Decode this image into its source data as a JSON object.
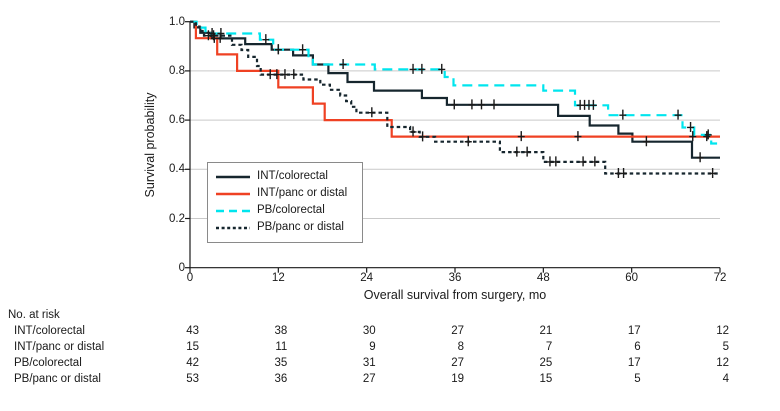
{
  "figure_title": "",
  "risk_table": {
    "header": "No. at risk",
    "columns": [
      0,
      12,
      24,
      36,
      48,
      60,
      72
    ],
    "rows": [
      {
        "label": "INT/colorectal",
        "values": [
          43,
          38,
          30,
          27,
          21,
          17,
          12
        ]
      },
      {
        "label": "INT/panc or distal",
        "values": [
          15,
          11,
          9,
          8,
          7,
          6,
          5
        ]
      },
      {
        "label": "PB/colorectal",
        "values": [
          42,
          35,
          31,
          27,
          25,
          17,
          12
        ]
      },
      {
        "label": "PB/panc or distal",
        "values": [
          53,
          36,
          27,
          19,
          15,
          5,
          4
        ]
      }
    ]
  },
  "colors": {
    "int_colorectal": "#16262e",
    "int_panc": "#ef4123",
    "pb_colorectal": "#00e5ee",
    "pb_panc": "#16262e",
    "axis": "#1a1a1a",
    "grid": "#c9c9c9",
    "censor": "#1a1a1a",
    "legend_border": "#8a8a8a"
  },
  "chart_data": {
    "type": "line",
    "subtype": "kaplan-meier-step",
    "title": "",
    "xlabel": "Overall survival from surgery, mo",
    "ylabel": "Survival probability",
    "xlim": [
      0,
      72
    ],
    "ylim": [
      0,
      1.0
    ],
    "grid": true,
    "legend_position": "inside-middle-left",
    "x_ticks": [
      {
        "label": "0",
        "value": 0
      },
      {
        "label": "12",
        "value": 12
      },
      {
        "label": "24",
        "value": 24
      },
      {
        "label": "36",
        "value": 36
      },
      {
        "label": "48",
        "value": 48
      },
      {
        "label": "60",
        "value": 60
      },
      {
        "label": "72",
        "value": 72
      }
    ],
    "y_ticks": [
      {
        "label": "1.0",
        "value": 1.0
      },
      {
        "label": "0.8",
        "value": 0.8
      },
      {
        "label": "0.6",
        "value": 0.6
      },
      {
        "label": "0.4",
        "value": 0.4
      },
      {
        "label": "0.2",
        "value": 0.2
      },
      {
        "label": "0",
        "value": 0
      }
    ],
    "series": [
      {
        "name": "INT/colorectal",
        "color": "#16262e",
        "style": "solid",
        "end": 72,
        "steps": [
          [
            0,
            1.0
          ],
          [
            0.6,
            0.977
          ],
          [
            1.4,
            0.955
          ],
          [
            2.9,
            0.932
          ],
          [
            7.5,
            0.909
          ],
          [
            11.1,
            0.886
          ],
          [
            14,
            0.863
          ],
          [
            16.7,
            0.826
          ],
          [
            18.8,
            0.791
          ],
          [
            21.4,
            0.755
          ],
          [
            25,
            0.72
          ],
          [
            31.5,
            0.69
          ],
          [
            34.9,
            0.662
          ],
          [
            50,
            0.617
          ],
          [
            54.3,
            0.578
          ],
          [
            58.2,
            0.545
          ],
          [
            60.1,
            0.512
          ],
          [
            68.2,
            0.447
          ]
        ],
        "censors": [
          [
            3.3,
            0.932
          ],
          [
            4.1,
            0.932
          ],
          [
            12,
            0.886
          ],
          [
            35.9,
            0.662
          ],
          [
            38.3,
            0.662
          ],
          [
            39.6,
            0.662
          ],
          [
            41.3,
            0.662
          ],
          [
            62,
            0.512
          ],
          [
            69.3,
            0.447
          ]
        ]
      },
      {
        "name": "INT/panc or distal",
        "color": "#ef4123",
        "style": "solid",
        "end": 72,
        "steps": [
          [
            0,
            1.0
          ],
          [
            0.8,
            0.933
          ],
          [
            3.7,
            0.867
          ],
          [
            6.4,
            0.8
          ],
          [
            12,
            0.733
          ],
          [
            16.7,
            0.667
          ],
          [
            18.3,
            0.6
          ],
          [
            27.4,
            0.533
          ]
        ],
        "censors": [
          [
            45,
            0.533
          ],
          [
            52.7,
            0.533
          ],
          [
            68.3,
            0.533
          ],
          [
            70.2,
            0.533
          ]
        ]
      },
      {
        "name": "PB/colorectal",
        "color": "#00e5ee",
        "style": "long-dash",
        "end": 71.6,
        "steps": [
          [
            0,
            1.0
          ],
          [
            0.9,
            0.976
          ],
          [
            2.1,
            0.952
          ],
          [
            9.5,
            0.927
          ],
          [
            11.3,
            0.886
          ],
          [
            16.1,
            0.86
          ],
          [
            16.7,
            0.826
          ],
          [
            25.1,
            0.806
          ],
          [
            34.6,
            0.775
          ],
          [
            35.8,
            0.741
          ],
          [
            48,
            0.72
          ],
          [
            52.3,
            0.66
          ],
          [
            56.8,
            0.62
          ],
          [
            66.9,
            0.57
          ],
          [
            68.5,
            0.54
          ],
          [
            70.8,
            0.505
          ]
        ],
        "censors": [
          [
            3,
            0.952
          ],
          [
            4.2,
            0.952
          ],
          [
            10.3,
            0.927
          ],
          [
            12,
            0.886
          ],
          [
            15.3,
            0.886
          ],
          [
            20.8,
            0.826
          ],
          [
            30.3,
            0.806
          ],
          [
            31.5,
            0.806
          ],
          [
            34.2,
            0.806
          ],
          [
            53,
            0.66
          ],
          [
            53.6,
            0.66
          ],
          [
            54.2,
            0.66
          ],
          [
            54.8,
            0.66
          ],
          [
            58.8,
            0.62
          ],
          [
            66.3,
            0.62
          ],
          [
            68,
            0.57
          ],
          [
            70.4,
            0.54
          ]
        ]
      },
      {
        "name": "PB/panc or distal",
        "color": "#16262e",
        "style": "short-dash",
        "end": 72,
        "steps": [
          [
            0,
            1.0
          ],
          [
            0.8,
            0.98
          ],
          [
            1.3,
            0.962
          ],
          [
            1.9,
            0.943
          ],
          [
            5.7,
            0.906
          ],
          [
            7,
            0.885
          ],
          [
            7.9,
            0.857
          ],
          [
            9.1,
            0.82
          ],
          [
            9.6,
            0.785
          ],
          [
            15.4,
            0.765
          ],
          [
            17.7,
            0.744
          ],
          [
            19,
            0.723
          ],
          [
            20.4,
            0.7
          ],
          [
            21.2,
            0.677
          ],
          [
            21.9,
            0.654
          ],
          [
            22.6,
            0.63
          ],
          [
            26.8,
            0.572
          ],
          [
            29.9,
            0.552
          ],
          [
            31.2,
            0.532
          ],
          [
            33.3,
            0.512
          ],
          [
            42.1,
            0.47
          ],
          [
            48,
            0.43
          ],
          [
            56.4,
            0.383
          ]
        ],
        "censors": [
          [
            2.5,
            0.943
          ],
          [
            3.2,
            0.943
          ],
          [
            10.9,
            0.785
          ],
          [
            11.8,
            0.785
          ],
          [
            12.9,
            0.785
          ],
          [
            14.1,
            0.785
          ],
          [
            24.7,
            0.63
          ],
          [
            30.3,
            0.552
          ],
          [
            31.6,
            0.532
          ],
          [
            37.8,
            0.512
          ],
          [
            44.4,
            0.47
          ],
          [
            45.8,
            0.47
          ],
          [
            48.9,
            0.43
          ],
          [
            49.7,
            0.43
          ],
          [
            53.4,
            0.43
          ],
          [
            55,
            0.43
          ],
          [
            58.2,
            0.383
          ],
          [
            58.9,
            0.383
          ],
          [
            71,
            0.383
          ]
        ]
      }
    ]
  }
}
